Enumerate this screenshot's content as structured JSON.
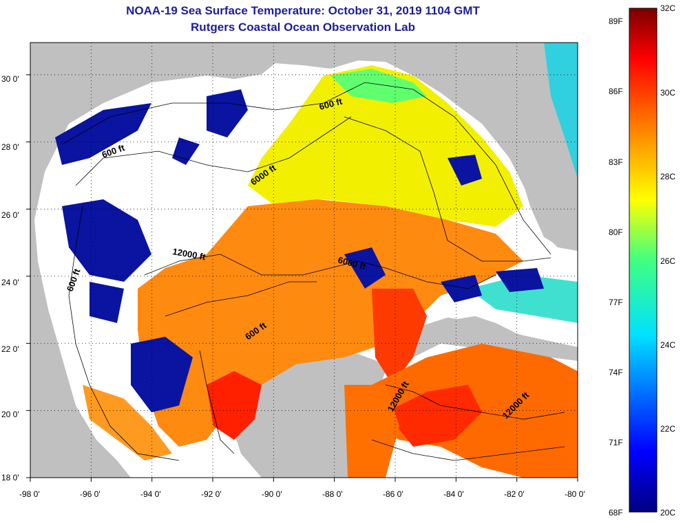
{
  "header": {
    "title": "NOAA-19 Sea Surface Temperature:  October 31, 2019 1104 GMT",
    "subtitle": "Rutgers Coastal Ocean Observation Lab"
  },
  "map": {
    "lat_ticks": [
      "18 0'",
      "20 0'",
      "22 0'",
      "24 0'",
      "26 0'",
      "28 0'",
      "30 0'"
    ],
    "lon_ticks": [
      "-98 0'",
      "-96 0'",
      "-94 0'",
      "-92 0'",
      "-90 0'",
      "-88 0'",
      "-86 0'",
      "-84 0'",
      "-82 0'",
      "-80 0'"
    ],
    "depth_labels": [
      "600 ft",
      "600 ft",
      "600 ft",
      "600 ft",
      "6000 ft",
      "6000 ft",
      "12000 ft",
      "12000 ft",
      "12000 ft"
    ],
    "colors": {
      "land": "#c0c0c0",
      "cloud": "#ffffff",
      "grid": "#000000"
    }
  },
  "colorbar": {
    "f_labels": [
      "89F",
      "86F",
      "83F",
      "80F",
      "77F",
      "74F",
      "71F",
      "68F"
    ],
    "c_labels": [
      "32C",
      "30C",
      "28C",
      "26C",
      "24C",
      "22C",
      "20C"
    ]
  }
}
